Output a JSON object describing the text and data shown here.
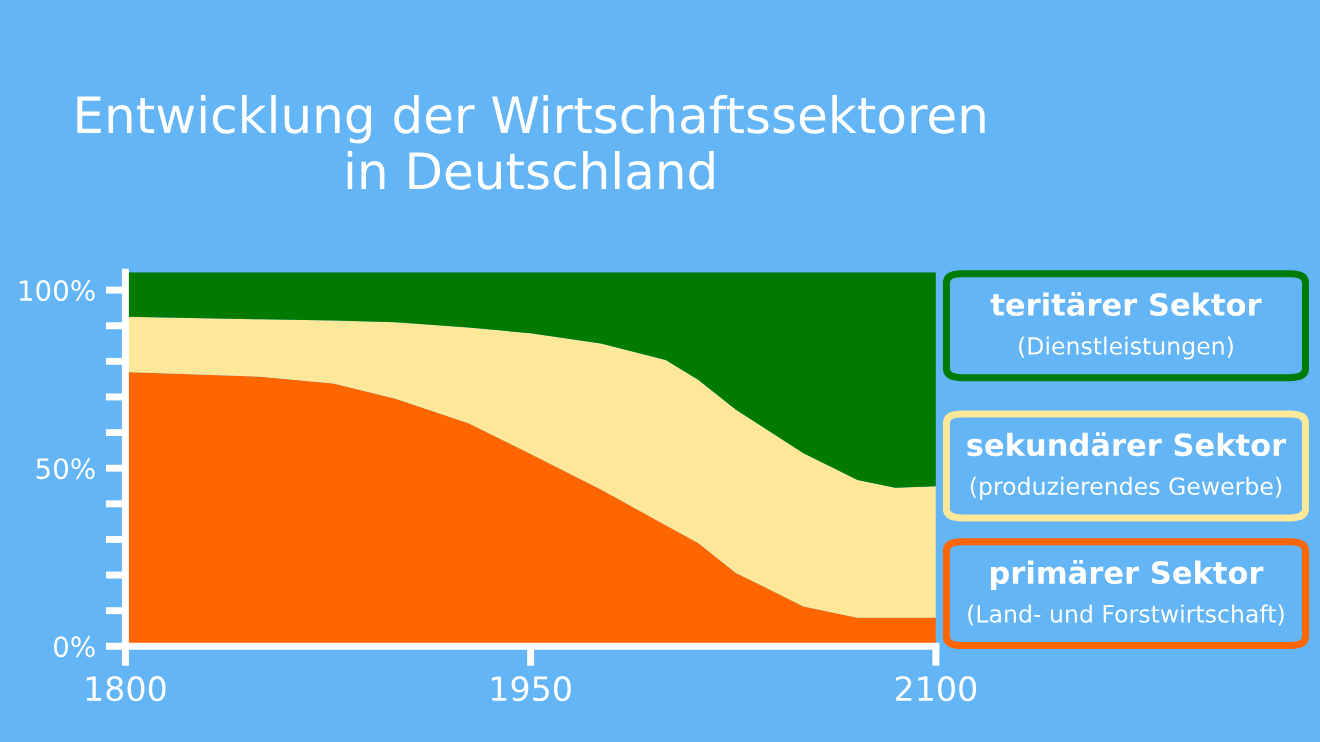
{
  "chart_data": {
    "type": "area",
    "stacked": true,
    "title": "Entwicklung der Wirtschaftssektoren\nin Deutschland",
    "x": [
      1800,
      1850,
      1877,
      1900,
      1927,
      1950,
      1976,
      2000,
      2012,
      2026,
      2051,
      2071,
      2085,
      2100
    ],
    "series": [
      {
        "name": "primärer Sektor\n(Land- und Forstwirtschaft)",
        "color": "#ff6600",
        "values": [
          77,
          75.7,
          73.8,
          69.5,
          62.6,
          54,
          44,
          34,
          29,
          20.6,
          11.2,
          8,
          8,
          8
        ]
      },
      {
        "name": "sekundärer Sektor\n(produzierendes Gewerbe)",
        "color": "#fde89a",
        "values": [
          15.5,
          16.1,
          17.7,
          21.5,
          26.9,
          33.9,
          41,
          46.4,
          45.8,
          45.8,
          43,
          38.7,
          36.5,
          36.9
        ]
      },
      {
        "name": "teritärer Sektor\n(Dienstleistungen)",
        "color": "#007a00",
        "values": [
          12.5,
          13.2,
          13.5,
          14,
          15.5,
          17.1,
          20,
          24.6,
          30.2,
          38.6,
          50.8,
          58.3,
          60.5,
          60.1
        ]
      }
    ],
    "xlim": [
      1800,
      2100
    ],
    "ylim": [
      0,
      105
    ],
    "xticks": [
      1800,
      1950,
      2100
    ],
    "yticks": [
      {
        "value": 0,
        "label": "0%"
      },
      {
        "value": 10,
        "label": null
      },
      {
        "value": 20,
        "label": null
      },
      {
        "value": 30,
        "label": null
      },
      {
        "value": 40,
        "label": null
      },
      {
        "value": 50,
        "label": "50%"
      },
      {
        "value": 60,
        "label": null
      },
      {
        "value": 70,
        "label": null
      },
      {
        "value": 80,
        "label": null
      },
      {
        "value": 90,
        "label": null
      },
      {
        "value": 100,
        "label": "100%"
      }
    ],
    "grid": false,
    "legend": "right"
  }
}
